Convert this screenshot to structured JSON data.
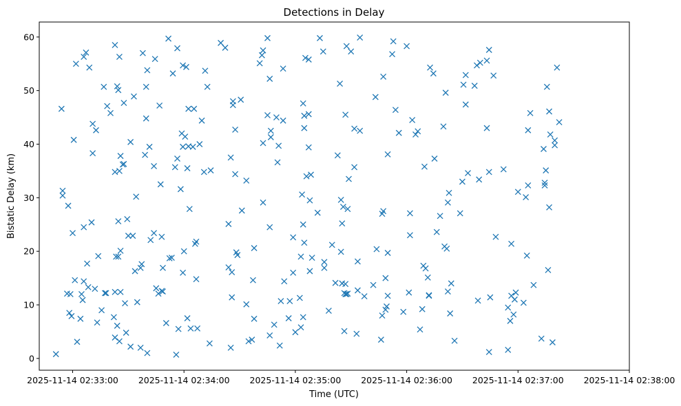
{
  "chart_data": {
    "type": "scatter",
    "title": "Detections in Delay",
    "xlabel": "Time (UTC)",
    "ylabel": "Bistatic Delay (km)",
    "marker": "x",
    "color": "#1f77b4",
    "grid": false,
    "x_unit": "2025-11-14 UTC, minutes past 02:00",
    "xlim": [
      32.7,
      38.0
    ],
    "ylim": [
      -2.2,
      62.8
    ],
    "x_ticks": [
      {
        "value": 33,
        "label": "2025-11-14 02:33:00"
      },
      {
        "value": 34,
        "label": "2025-11-14 02:34:00"
      },
      {
        "value": 35,
        "label": "2025-11-14 02:35:00"
      },
      {
        "value": 36,
        "label": "2025-11-14 02:36:00"
      },
      {
        "value": 37,
        "label": "2025-11-14 02:37:00"
      },
      {
        "value": 38,
        "label": "2025-11-14 02:38:00"
      }
    ],
    "y_ticks": [
      {
        "value": 0,
        "label": "0"
      },
      {
        "value": 10,
        "label": "10"
      },
      {
        "value": 20,
        "label": "20"
      },
      {
        "value": 30,
        "label": "30"
      },
      {
        "value": 40,
        "label": "40"
      },
      {
        "value": 50,
        "label": "50"
      },
      {
        "value": 60,
        "label": "60"
      }
    ],
    "points": [
      [
        32.85,
        0.8
      ],
      [
        32.9,
        46.6
      ],
      [
        32.91,
        31.3
      ],
      [
        32.91,
        30.4
      ],
      [
        32.95,
        12.1
      ],
      [
        32.96,
        28.5
      ],
      [
        32.97,
        8.5
      ],
      [
        32.98,
        12.0
      ],
      [
        32.99,
        7.9
      ],
      [
        33.0,
        23.4
      ],
      [
        33.01,
        40.8
      ],
      [
        33.02,
        14.6
      ],
      [
        33.03,
        55.0
      ],
      [
        33.04,
        3.1
      ],
      [
        33.07,
        7.4
      ],
      [
        33.08,
        12.0
      ],
      [
        33.09,
        10.9
      ],
      [
        33.1,
        14.4
      ],
      [
        33.1,
        24.5
      ],
      [
        33.1,
        56.3
      ],
      [
        33.12,
        57.1
      ],
      [
        33.13,
        17.7
      ],
      [
        33.14,
        13.3
      ],
      [
        33.15,
        54.3
      ],
      [
        33.17,
        25.4
      ],
      [
        33.18,
        38.3
      ],
      [
        33.18,
        43.8
      ],
      [
        33.2,
        13.0
      ],
      [
        33.21,
        42.6
      ],
      [
        33.22,
        6.7
      ],
      [
        33.23,
        19.1
      ],
      [
        33.26,
        9.0
      ],
      [
        33.28,
        50.7
      ],
      [
        33.29,
        12.2
      ],
      [
        33.3,
        12.2
      ],
      [
        33.31,
        47.1
      ],
      [
        33.34,
        45.8
      ],
      [
        33.37,
        7.7
      ],
      [
        33.38,
        12.4
      ],
      [
        33.38,
        58.5
      ],
      [
        33.38,
        3.9
      ],
      [
        33.38,
        34.8
      ],
      [
        33.39,
        19.0
      ],
      [
        33.4,
        6.1
      ],
      [
        33.41,
        25.6
      ],
      [
        33.41,
        19.0
      ],
      [
        33.4,
        50.8
      ],
      [
        33.41,
        50.1
      ],
      [
        33.42,
        56.3
      ],
      [
        33.42,
        35.0
      ],
      [
        33.42,
        3.2
      ],
      [
        33.43,
        37.8
      ],
      [
        33.43,
        20.1
      ],
      [
        33.43,
        12.4
      ],
      [
        33.45,
        36.2
      ],
      [
        33.46,
        36.3
      ],
      [
        33.46,
        47.7
      ],
      [
        33.47,
        10.3
      ],
      [
        33.48,
        4.8
      ],
      [
        33.49,
        26.0
      ],
      [
        33.5,
        22.9
      ],
      [
        33.52,
        2.2
      ],
      [
        33.52,
        40.4
      ],
      [
        33.54,
        22.9
      ],
      [
        33.55,
        48.9
      ],
      [
        33.56,
        16.3
      ],
      [
        33.57,
        30.2
      ],
      [
        33.58,
        10.5
      ],
      [
        33.61,
        2.0
      ],
      [
        33.61,
        16.9
      ],
      [
        33.62,
        17.6
      ],
      [
        33.63,
        57.0
      ],
      [
        33.65,
        38.0
      ],
      [
        33.66,
        44.8
      ],
      [
        33.66,
        50.7
      ],
      [
        33.67,
        53.8
      ],
      [
        33.67,
        1.0
      ],
      [
        33.69,
        39.5
      ],
      [
        33.7,
        22.1
      ],
      [
        33.73,
        35.9
      ],
      [
        33.73,
        23.4
      ],
      [
        33.74,
        55.9
      ],
      [
        33.75,
        13.1
      ],
      [
        33.77,
        12.1
      ],
      [
        33.78,
        47.2
      ],
      [
        33.79,
        32.5
      ],
      [
        33.8,
        12.6
      ],
      [
        33.8,
        22.7
      ],
      [
        33.81,
        12.5
      ],
      [
        33.81,
        16.9
      ],
      [
        33.84,
        6.6
      ],
      [
        33.86,
        59.7
      ],
      [
        33.87,
        18.7
      ],
      [
        33.89,
        18.8
      ],
      [
        33.9,
        53.2
      ],
      [
        33.92,
        35.7
      ],
      [
        33.93,
        0.7
      ],
      [
        33.94,
        37.3
      ],
      [
        33.94,
        57.9
      ],
      [
        33.95,
        5.5
      ],
      [
        33.97,
        31.6
      ],
      [
        33.98,
        42.0
      ],
      [
        33.99,
        39.5
      ],
      [
        33.99,
        54.7
      ],
      [
        33.99,
        16.0
      ],
      [
        34.0,
        20.0
      ],
      [
        34.01,
        41.4
      ],
      [
        34.02,
        54.4
      ],
      [
        34.03,
        35.5
      ],
      [
        34.03,
        7.5
      ],
      [
        34.04,
        46.6
      ],
      [
        34.04,
        39.6
      ],
      [
        34.05,
        27.9
      ],
      [
        34.06,
        5.6
      ],
      [
        34.08,
        39.5
      ],
      [
        34.09,
        46.6
      ],
      [
        34.1,
        21.4
      ],
      [
        34.11,
        21.8
      ],
      [
        34.11,
        14.8
      ],
      [
        34.12,
        5.6
      ],
      [
        34.14,
        40.0
      ],
      [
        34.16,
        44.4
      ],
      [
        34.18,
        34.8
      ],
      [
        34.19,
        53.7
      ],
      [
        34.21,
        50.7
      ],
      [
        34.23,
        2.8
      ],
      [
        34.24,
        35.1
      ],
      [
        34.33,
        58.9
      ],
      [
        34.37,
        58.0
      ],
      [
        34.4,
        25.1
      ],
      [
        34.4,
        17.0
      ],
      [
        34.42,
        37.5
      ],
      [
        34.42,
        2.0
      ],
      [
        34.43,
        16.1
      ],
      [
        34.43,
        11.4
      ],
      [
        34.44,
        47.3
      ],
      [
        34.44,
        48.0
      ],
      [
        34.46,
        42.7
      ],
      [
        34.46,
        34.4
      ],
      [
        34.47,
        19.8
      ],
      [
        34.48,
        19.3
      ],
      [
        34.51,
        48.3
      ],
      [
        34.52,
        27.6
      ],
      [
        34.56,
        33.2
      ],
      [
        34.56,
        10.1
      ],
      [
        34.58,
        3.2
      ],
      [
        34.61,
        3.5
      ],
      [
        34.62,
        14.6
      ],
      [
        34.63,
        7.4
      ],
      [
        34.63,
        20.6
      ],
      [
        34.68,
        55.1
      ],
      [
        34.7,
        56.6
      ],
      [
        34.71,
        57.5
      ],
      [
        34.71,
        40.2
      ],
      [
        34.71,
        29.1
      ],
      [
        34.75,
        59.8
      ],
      [
        34.75,
        45.4
      ],
      [
        34.77,
        52.2
      ],
      [
        34.77,
        24.5
      ],
      [
        34.77,
        4.3
      ],
      [
        34.78,
        41.3
      ],
      [
        34.78,
        42.5
      ],
      [
        34.81,
        6.3
      ],
      [
        34.83,
        45.0
      ],
      [
        34.84,
        36.6
      ],
      [
        34.85,
        39.7
      ],
      [
        34.86,
        2.4
      ],
      [
        34.87,
        10.7
      ],
      [
        34.89,
        44.4
      ],
      [
        34.89,
        54.1
      ],
      [
        34.9,
        14.4
      ],
      [
        34.94,
        7.5
      ],
      [
        34.95,
        10.7
      ],
      [
        34.98,
        16.0
      ],
      [
        34.98,
        22.6
      ],
      [
        35.0,
        4.9
      ],
      [
        35.04,
        11.3
      ],
      [
        35.05,
        5.8
      ],
      [
        35.05,
        19.0
      ],
      [
        35.06,
        30.6
      ],
      [
        35.07,
        7.7
      ],
      [
        35.07,
        47.6
      ],
      [
        35.07,
        25.0
      ],
      [
        35.08,
        21.6
      ],
      [
        35.08,
        43.0
      ],
      [
        35.08,
        45.3
      ],
      [
        35.09,
        56.1
      ],
      [
        35.1,
        34.0
      ],
      [
        35.12,
        45.6
      ],
      [
        35.12,
        55.8
      ],
      [
        35.12,
        39.4
      ],
      [
        35.13,
        29.5
      ],
      [
        35.13,
        16.3
      ],
      [
        35.14,
        34.3
      ],
      [
        35.15,
        18.8
      ],
      [
        35.2,
        27.2
      ],
      [
        35.22,
        59.8
      ],
      [
        35.25,
        57.3
      ],
      [
        35.26,
        18.0
      ],
      [
        35.26,
        16.9
      ],
      [
        35.3,
        8.9
      ],
      [
        35.33,
        21.2
      ],
      [
        35.36,
        14.1
      ],
      [
        35.38,
        37.9
      ],
      [
        35.4,
        51.3
      ],
      [
        35.41,
        19.9
      ],
      [
        35.41,
        29.6
      ],
      [
        35.42,
        25.2
      ],
      [
        35.42,
        14.0
      ],
      [
        35.43,
        28.3
      ],
      [
        35.44,
        12.2
      ],
      [
        35.44,
        5.1
      ],
      [
        35.45,
        13.9
      ],
      [
        35.45,
        45.5
      ],
      [
        35.45,
        12.0
      ],
      [
        35.46,
        58.3
      ],
      [
        35.46,
        12.0
      ],
      [
        35.47,
        12.1
      ],
      [
        35.47,
        27.9
      ],
      [
        35.48,
        33.5
      ],
      [
        35.5,
        57.3
      ],
      [
        35.53,
        42.9
      ],
      [
        35.53,
        35.7
      ],
      [
        35.55,
        4.6
      ],
      [
        35.56,
        12.7
      ],
      [
        35.56,
        18.1
      ],
      [
        35.58,
        42.5
      ],
      [
        35.58,
        59.9
      ],
      [
        35.62,
        11.6
      ],
      [
        35.7,
        13.7
      ],
      [
        35.72,
        48.8
      ],
      [
        35.73,
        20.4
      ],
      [
        35.77,
        3.5
      ],
      [
        35.78,
        27.0
      ],
      [
        35.78,
        8.0
      ],
      [
        35.79,
        52.6
      ],
      [
        35.79,
        27.5
      ],
      [
        35.81,
        9.1
      ],
      [
        35.81,
        15.0
      ],
      [
        35.82,
        9.7
      ],
      [
        35.83,
        19.7
      ],
      [
        35.83,
        11.7
      ],
      [
        35.83,
        38.1
      ],
      [
        35.87,
        56.8
      ],
      [
        35.88,
        59.2
      ],
      [
        35.9,
        46.4
      ],
      [
        35.93,
        42.1
      ],
      [
        35.97,
        8.7
      ],
      [
        36.0,
        58.3
      ],
      [
        36.02,
        12.3
      ],
      [
        36.03,
        27.1
      ],
      [
        36.03,
        23.0
      ],
      [
        36.05,
        44.5
      ],
      [
        36.08,
        41.8
      ],
      [
        36.1,
        42.4
      ],
      [
        36.12,
        5.4
      ],
      [
        36.14,
        9.2
      ],
      [
        36.15,
        17.3
      ],
      [
        36.16,
        35.8
      ],
      [
        36.17,
        16.8
      ],
      [
        36.19,
        15.1
      ],
      [
        36.2,
        11.8
      ],
      [
        36.2,
        11.7
      ],
      [
        36.21,
        54.3
      ],
      [
        36.24,
        53.2
      ],
      [
        36.25,
        37.3
      ],
      [
        36.27,
        23.6
      ],
      [
        36.3,
        26.6
      ],
      [
        36.33,
        43.3
      ],
      [
        36.34,
        20.9
      ],
      [
        36.35,
        49.6
      ],
      [
        36.36,
        20.5
      ],
      [
        36.37,
        12.5
      ],
      [
        36.39,
        8.4
      ],
      [
        36.37,
        29.1
      ],
      [
        36.38,
        30.9
      ],
      [
        36.4,
        14.0
      ],
      [
        36.43,
        3.3
      ],
      [
        36.48,
        27.1
      ],
      [
        36.5,
        33.0
      ],
      [
        36.51,
        51.1
      ],
      [
        36.53,
        47.4
      ],
      [
        36.53,
        52.9
      ],
      [
        36.55,
        34.6
      ],
      [
        36.61,
        50.9
      ],
      [
        36.63,
        54.7
      ],
      [
        36.64,
        10.8
      ],
      [
        36.65,
        33.4
      ],
      [
        36.66,
        55.2
      ],
      [
        36.72,
        43.0
      ],
      [
        36.72,
        55.6
      ],
      [
        36.74,
        57.6
      ],
      [
        36.74,
        34.8
      ],
      [
        36.74,
        1.2
      ],
      [
        36.75,
        11.4
      ],
      [
        36.78,
        52.8
      ],
      [
        36.8,
        22.7
      ],
      [
        36.87,
        35.3
      ],
      [
        36.91,
        1.6
      ],
      [
        36.91,
        9.5
      ],
      [
        36.93,
        7.0
      ],
      [
        36.94,
        11.7
      ],
      [
        36.94,
        21.4
      ],
      [
        36.96,
        8.2
      ],
      [
        36.97,
        11.0
      ],
      [
        36.98,
        12.3
      ],
      [
        37.0,
        31.1
      ],
      [
        37.05,
        10.4
      ],
      [
        37.07,
        30.1
      ],
      [
        37.08,
        19.2
      ],
      [
        37.09,
        32.3
      ],
      [
        37.09,
        42.6
      ],
      [
        37.11,
        45.8
      ],
      [
        37.14,
        13.7
      ],
      [
        37.21,
        3.7
      ],
      [
        37.23,
        39.1
      ],
      [
        37.24,
        32.3
      ],
      [
        37.24,
        32.8
      ],
      [
        37.25,
        35.1
      ],
      [
        37.26,
        50.7
      ],
      [
        37.27,
        16.5
      ],
      [
        37.28,
        46.1
      ],
      [
        37.28,
        28.2
      ],
      [
        37.29,
        41.8
      ],
      [
        37.31,
        3.0
      ],
      [
        37.33,
        40.7
      ],
      [
        37.33,
        39.8
      ],
      [
        37.35,
        54.3
      ],
      [
        37.37,
        44.1
      ]
    ]
  }
}
